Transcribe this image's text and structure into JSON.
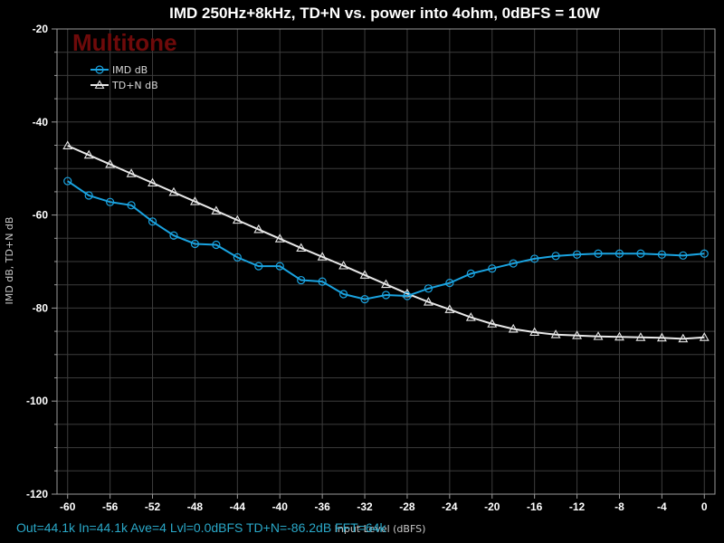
{
  "chart_data": {
    "type": "line",
    "title": "IMD 250Hz+8kHz, TD+N vs. power into 4ohm, 0dBFS = 10W",
    "xlabel": "Input Level (dBFS)",
    "ylabel": "IMD dB, TD+N dB",
    "xlim": [
      -61,
      1
    ],
    "ylim": [
      -120,
      -20
    ],
    "x_ticks": [
      -60,
      -56,
      -52,
      -48,
      -44,
      -40,
      -36,
      -32,
      -28,
      -24,
      -20,
      -16,
      -12,
      -8,
      -4,
      0
    ],
    "y_ticks": [
      -20,
      -40,
      -60,
      -80,
      -100,
      -120
    ],
    "grid": true,
    "legend_position": "top-left",
    "x": [
      -60,
      -58,
      -56,
      -54,
      -52,
      -50,
      -48,
      -46,
      -44,
      -42,
      -40,
      -38,
      -36,
      -34,
      -32,
      -30,
      -28,
      -26,
      -24,
      -22,
      -20,
      -18,
      -16,
      -14,
      -12,
      -10,
      -8,
      -6,
      -4,
      -2,
      0
    ],
    "series": [
      {
        "name": "IMD dB",
        "color": "#1aa3e0",
        "marker": "circle",
        "values": [
          -52.7,
          -55.8,
          -57.2,
          -57.9,
          -61.4,
          -64.4,
          -66.2,
          -66.4,
          -69.1,
          -71.0,
          -71.0,
          -74.0,
          -74.3,
          -77.0,
          -78.1,
          -77.2,
          -77.4,
          -75.8,
          -74.6,
          -72.6,
          -71.5,
          -70.4,
          -69.4,
          -68.8,
          -68.5,
          -68.3,
          -68.3,
          -68.3,
          -68.5,
          -68.7,
          -68.3
        ]
      },
      {
        "name": "TD+N dB",
        "color": "#e8e8e8",
        "marker": "triangle",
        "values": [
          -45.1,
          -47.1,
          -49.1,
          -51.1,
          -53.1,
          -55.1,
          -57.1,
          -59.1,
          -61.1,
          -63.1,
          -65.1,
          -67.1,
          -69.0,
          -70.9,
          -72.9,
          -74.9,
          -76.9,
          -78.7,
          -80.3,
          -82.0,
          -83.4,
          -84.5,
          -85.2,
          -85.7,
          -85.9,
          -86.1,
          -86.2,
          -86.3,
          -86.4,
          -86.6,
          -86.3
        ]
      }
    ],
    "annotations": {
      "watermark": "Multitone",
      "status_line": "Out=44.1k  In=44.1k  Ave=4  Lvl=0.0dBFS  TD+N=-86.2dB  FFT=64k"
    }
  },
  "colors": {
    "background": "#000000",
    "grid": "#3c3c3c",
    "axis": "#9a9a9a",
    "watermark": "#6e0a0a",
    "status_text": "#2aa8c8"
  }
}
